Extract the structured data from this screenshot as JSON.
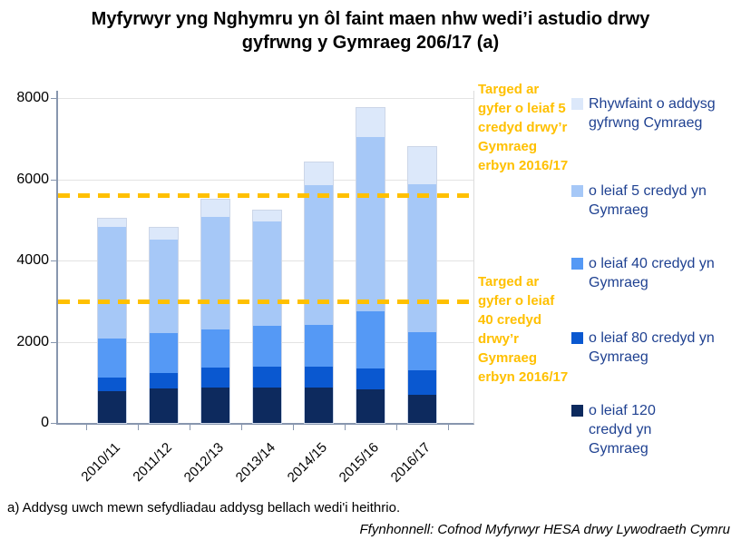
{
  "title": "Myfyrwyr yng Nghymru yn ôl faint maen nhw wedi’i astudio drwy gyfrwng y Gymraeg 206/17 (a)",
  "footnote": "a) Addysg uwch mewn sefydliadau addysg bellach wedi'i heithrio.",
  "source": "Ffynhonnell: Cofnod Myfyrwyr HESA drwy Lywodraeth Cymru",
  "colors": {
    "target_line": "#FFC000",
    "legend_text": "#1F4191",
    "annotation_text": "#FFC000",
    "axis_line": "#8796AE",
    "gridline": "#E3E3E3"
  },
  "chart_data": {
    "type": "bar",
    "stacked": true,
    "title": "Myfyrwyr yng Nghymru yn ôl faint maen nhw wedi’i astudio drwy gyfrwng y Gymraeg 206/17 (a)",
    "categories": [
      "2010/11",
      "2011/12",
      "2012/13",
      "2013/14",
      "2014/15",
      "2015/16",
      "2016/17"
    ],
    "series": [
      {
        "name": "o leiaf 120 credyd yn Gymraeg",
        "color": "#0D2A5E",
        "values": [
          780,
          845,
          860,
          875,
          875,
          815,
          690
        ]
      },
      {
        "name": "o leiaf 80 credyd yn Gymraeg",
        "color": "#0A58D0",
        "values": [
          330,
          375,
          500,
          505,
          505,
          515,
          610
        ]
      },
      {
        "name": "o leiaf 40 credyd yn Gymraeg",
        "color": "#5599F5",
        "values": [
          960,
          1000,
          950,
          1010,
          1030,
          1420,
          940
        ]
      },
      {
        "name": "o leiaf 5 credyd yn Gymraeg",
        "color": "#A6C8F7",
        "values": [
          2760,
          2300,
          2760,
          2580,
          3440,
          4300,
          3630
        ]
      },
      {
        "name": "Rhywfaint o addysg gyfrwng Cymraeg",
        "color": "#DCE8FA",
        "values": [
          200,
          280,
          430,
          260,
          570,
          700,
          930
        ]
      }
    ],
    "totals": [
      5030,
      4800,
      5500,
      5230,
      6420,
      7750,
      6800
    ],
    "ylim": [
      0,
      8000
    ],
    "yticks": [
      0,
      2000,
      4000,
      6000,
      8000
    ],
    "xlabel": "",
    "ylabel": "",
    "grid": true,
    "legend_position": "right",
    "target_lines": [
      {
        "label": "Targed ar gyfer o leiaf 5 credyd drwy’r Gymraeg erbyn 2016/17",
        "value": 5600
      },
      {
        "label": "Targed ar gyfer o leiaf 40 credyd drwy’r Gymraeg erbyn 2016/17",
        "value": 3000
      }
    ]
  }
}
